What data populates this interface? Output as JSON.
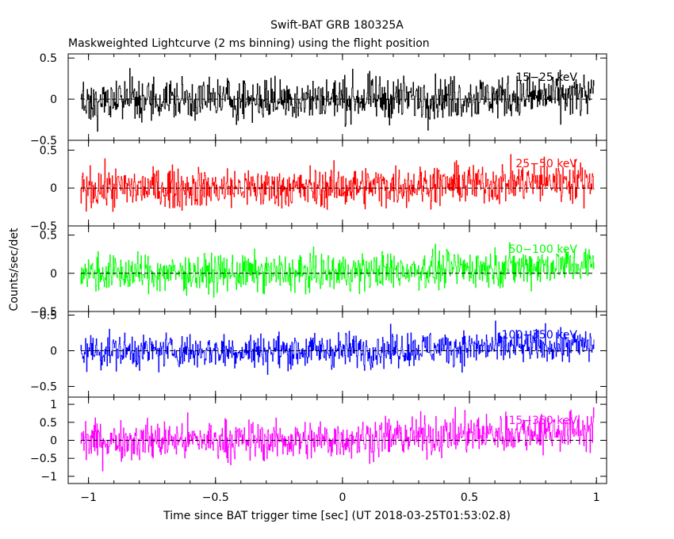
{
  "chart_data": {
    "type": "line",
    "title": "Swift-BAT GRB 180325A",
    "subtitle": "Maskweighted Lightcurve (2 ms binning) using the flight position",
    "xlabel": "Time since BAT trigger time [sec] (UT 2018-03-25T01:53:02.8)",
    "ylabel": "Counts/sec/det",
    "xlim": [
      -1.08,
      1.04
    ],
    "xticks": [
      -1,
      -0.5,
      0,
      0.5,
      1
    ],
    "xtick_labels": [
      "−1",
      "−0.5",
      "0",
      "0.5",
      "1"
    ],
    "grid": false,
    "zero_line": "dashed",
    "bin_width_sec": 0.002,
    "panels": [
      {
        "band": "15−25 keV",
        "color": "#000000",
        "ylim": [
          -0.5,
          0.55
        ],
        "yticks": [
          -0.5,
          0,
          0.5
        ],
        "ytick_labels": [
          "−0.5",
          "0",
          "0.5"
        ],
        "noise_amp": 0.13,
        "trend_end": 0.04
      },
      {
        "band": "25−50 keV",
        "color": "#ff0000",
        "ylim": [
          -0.5,
          0.63
        ],
        "yticks": [
          -0.5,
          0,
          0.5
        ],
        "ytick_labels": [
          "−0.5",
          "0",
          "0.5"
        ],
        "noise_amp": 0.13,
        "trend_end": 0.1
      },
      {
        "band": "50−100 keV",
        "color": "#00ff00",
        "ylim": [
          -0.5,
          0.62
        ],
        "yticks": [
          -0.5,
          0,
          0.5
        ],
        "ytick_labels": [
          "−0.5",
          "0",
          "0.5"
        ],
        "noise_amp": 0.12,
        "trend_end": 0.12
      },
      {
        "band": "100−350 keV",
        "color": "#0000ff",
        "ylim": [
          -0.65,
          0.55
        ],
        "yticks": [
          -0.5,
          0,
          0.5
        ],
        "ytick_labels": [
          "−0.5",
          "0",
          "0.5"
        ],
        "noise_amp": 0.12,
        "trend_end": 0.08
      },
      {
        "band": "15−350 keV",
        "color": "#ff00ff",
        "ylim": [
          -1.2,
          1.2
        ],
        "yticks": [
          -1,
          -0.5,
          0,
          0.5,
          1
        ],
        "ytick_labels": [
          "−1",
          "−0.5",
          "0",
          "0.5",
          "1"
        ],
        "noise_amp": 0.27,
        "trend_end": 0.3
      }
    ]
  }
}
